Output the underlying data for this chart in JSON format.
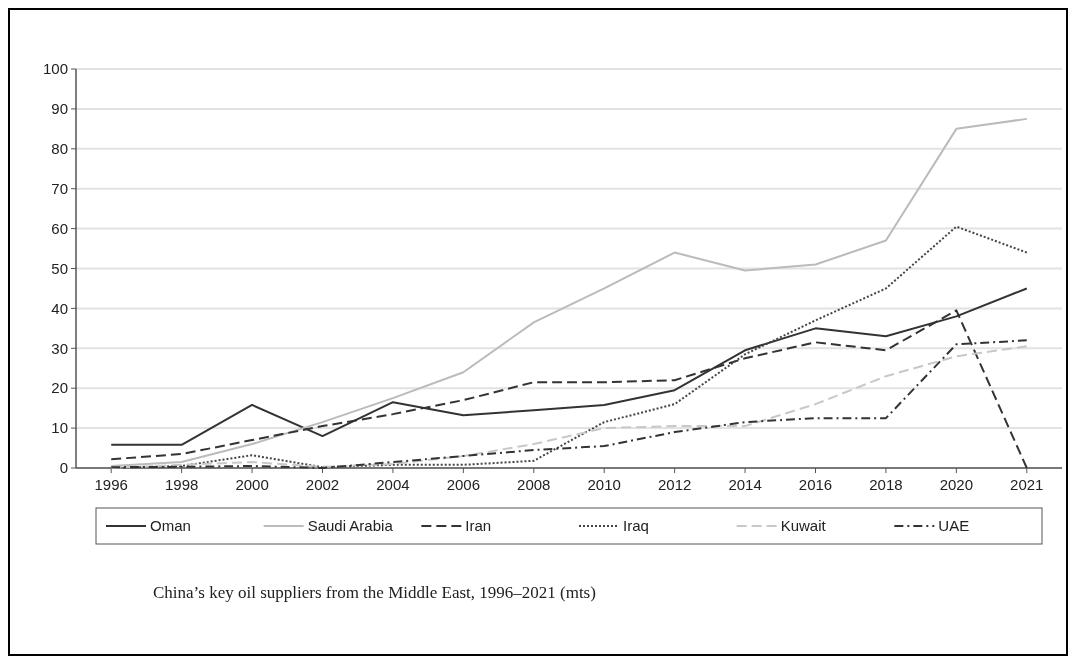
{
  "chart_data": {
    "type": "line",
    "categories": [
      "1996",
      "1998",
      "2000",
      "2002",
      "2004",
      "2006",
      "2008",
      "2010",
      "2012",
      "2014",
      "2016",
      "2018",
      "2020",
      "2021"
    ],
    "series": [
      {
        "name": "Oman",
        "color": "#333333",
        "line_style": "solid",
        "values": [
          5.8,
          5.8,
          15.8,
          8,
          16.5,
          13.2,
          14.5,
          15.8,
          19.5,
          29.5,
          35,
          33,
          38,
          45
        ]
      },
      {
        "name": "Saudi Arabia",
        "color": "#bbbbbb",
        "line_style": "solid",
        "values": [
          0.5,
          1.5,
          6,
          11.5,
          17.5,
          24,
          36.5,
          45,
          54,
          49.5,
          51,
          57,
          85,
          87.5
        ]
      },
      {
        "name": "Iran",
        "color": "#333333",
        "line_style": "dashed",
        "values": [
          2.2,
          3.5,
          7,
          10.5,
          13.5,
          17,
          21.5,
          21.5,
          22,
          27.5,
          31.5,
          29.5,
          39.5,
          0
        ]
      },
      {
        "name": "Iraq",
        "color": "#444444",
        "line_style": "dotted",
        "values": [
          0,
          0.5,
          3.2,
          0.2,
          0.8,
          0.8,
          1.8,
          11.5,
          16,
          28.5,
          37,
          45,
          60.5,
          54
        ]
      },
      {
        "name": "Kuwait",
        "color": "#c8c8c8",
        "line_style": "dashed",
        "values": [
          0,
          0.8,
          1.5,
          0.3,
          1,
          3,
          6,
          10,
          10.5,
          10.5,
          16,
          23,
          28,
          30.5
        ]
      },
      {
        "name": "UAE",
        "color": "#333333",
        "line_style": "dashdot",
        "values": [
          0.2,
          0.3,
          0.5,
          0,
          1.5,
          3,
          4.5,
          5.5,
          9,
          11.5,
          12.5,
          12.5,
          31,
          32
        ]
      }
    ],
    "ylim": [
      0,
      100
    ],
    "yticks": [
      0,
      10,
      20,
      30,
      40,
      50,
      60,
      70,
      80,
      90,
      100
    ],
    "grid": "y",
    "legend": "bottom",
    "annotations": [
      "China’s key oil suppliers from the Middle East, 1996–2021 (mts)"
    ]
  }
}
